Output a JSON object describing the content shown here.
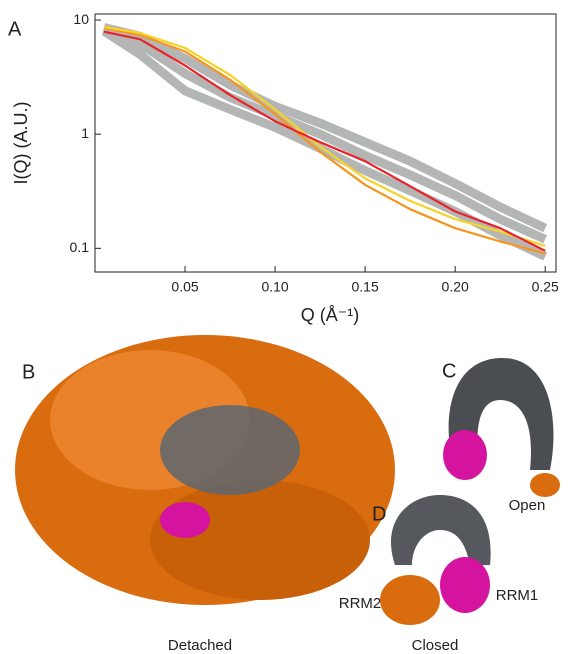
{
  "chart_data": {
    "type": "line",
    "panel": "A",
    "ylabel": "I(Q) (A.U.)",
    "xlabel": "Q (Å⁻¹)",
    "x": [
      0.005,
      0.025,
      0.05,
      0.075,
      0.1,
      0.125,
      0.15,
      0.175,
      0.2,
      0.225,
      0.25
    ],
    "series": [
      {
        "color": "#b4b6b6",
        "values": [
          8.6,
          7.2,
          4.6,
          2.7,
          1.75,
          1.25,
          0.85,
          0.58,
          0.37,
          0.23,
          0.15
        ]
      },
      {
        "color": "#b4b6b6",
        "values": [
          8.3,
          6.2,
          3.4,
          2.1,
          1.45,
          1.0,
          0.65,
          0.44,
          0.29,
          0.18,
          0.12
        ]
      },
      {
        "color": "#b4b6b6",
        "values": [
          8.0,
          5.0,
          2.4,
          1.65,
          1.15,
          0.75,
          0.48,
          0.32,
          0.21,
          0.13,
          0.085
        ]
      },
      {
        "color": "#f7941d",
        "values": [
          8.5,
          7.4,
          5.3,
          3.0,
          1.5,
          0.7,
          0.36,
          0.22,
          0.15,
          0.115,
          0.09
        ]
      },
      {
        "color": "#f5d327",
        "values": [
          8.7,
          7.7,
          5.7,
          3.3,
          1.65,
          0.78,
          0.41,
          0.26,
          0.18,
          0.14,
          0.105
        ]
      },
      {
        "color": "#e8242a",
        "values": [
          7.9,
          6.8,
          4.0,
          2.2,
          1.3,
          0.85,
          0.58,
          0.35,
          0.21,
          0.15,
          0.095
        ]
      }
    ],
    "xlim": [
      0,
      0.256
    ],
    "ylim": [
      0.062,
      11.3
    ],
    "log_y": true,
    "xticks": [
      0.05,
      {
        "value": 0.1,
        "label": "0.10"
      },
      0.15,
      {
        "value": 0.2,
        "label": "0.20"
      },
      0.25
    ],
    "yticks": [
      0.1,
      1,
      10
    ]
  },
  "panels": {
    "b": "B",
    "c": "C",
    "d": "D"
  },
  "labels": {
    "detached": "Detached",
    "open": "Open",
    "closed": "Closed",
    "rrm1": "RRM1",
    "rrm2": "RRM2"
  }
}
